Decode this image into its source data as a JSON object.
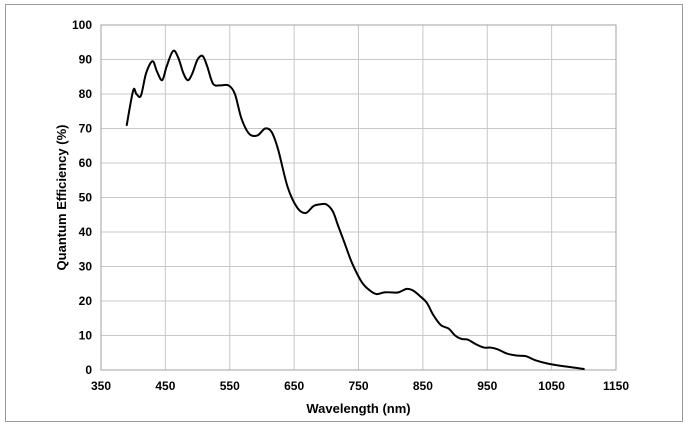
{
  "chart_data": {
    "type": "line",
    "title": "",
    "xlabel": "Wavelength (nm)",
    "ylabel": "Quantum Efficiency (%)",
    "xlim": [
      350,
      1150
    ],
    "ylim": [
      0,
      100
    ],
    "x_ticks": [
      350,
      450,
      550,
      650,
      750,
      850,
      950,
      1050,
      1150
    ],
    "y_ticks": [
      0,
      10,
      20,
      30,
      40,
      50,
      60,
      70,
      80,
      90,
      100
    ],
    "x_tick_labels": [
      "350",
      "450",
      "550",
      "650",
      "750",
      "850",
      "950",
      "1050",
      "1150"
    ],
    "y_tick_labels": [
      "0",
      "10",
      "20",
      "30",
      "40",
      "50",
      "60",
      "70",
      "80",
      "90",
      "100"
    ],
    "grid": true,
    "legend": "none",
    "line_color": "#000000",
    "grid_color": "#c8c8c8",
    "series": [
      {
        "x": [
          390,
          400,
          405,
          412,
          420,
          430,
          437,
          445,
          452,
          462,
          470,
          478,
          485,
          492,
          500,
          508,
          515,
          524,
          535,
          548,
          558,
          568,
          580,
          593,
          605,
          615,
          625,
          640,
          655,
          668,
          680,
          690,
          700,
          710,
          718,
          728,
          740,
          755,
          768,
          778,
          790,
          800,
          812,
          825,
          835,
          845,
          856,
          866,
          878,
          890,
          900,
          910,
          920,
          932,
          945,
          955,
          966,
          980,
          995,
          1010,
          1025,
          1045,
          1065,
          1085,
          1100
        ],
        "y": [
          71,
          81,
          80,
          79.5,
          86,
          89.5,
          86.5,
          84,
          88,
          92.5,
          90.5,
          86,
          84,
          86,
          90,
          91,
          88,
          83,
          82.5,
          82.5,
          80,
          73,
          68.5,
          68,
          70,
          69,
          64,
          53,
          47,
          45.5,
          47.5,
          48,
          48,
          46,
          42,
          37,
          31,
          25.5,
          23,
          22,
          22.5,
          22.5,
          22.5,
          23.5,
          23,
          21.5,
          19.5,
          16,
          13,
          12,
          10,
          9,
          8.8,
          7.5,
          6.5,
          6.5,
          6,
          4.8,
          4.2,
          4,
          2.8,
          1.8,
          1.2,
          0.7,
          0.3
        ]
      }
    ]
  }
}
